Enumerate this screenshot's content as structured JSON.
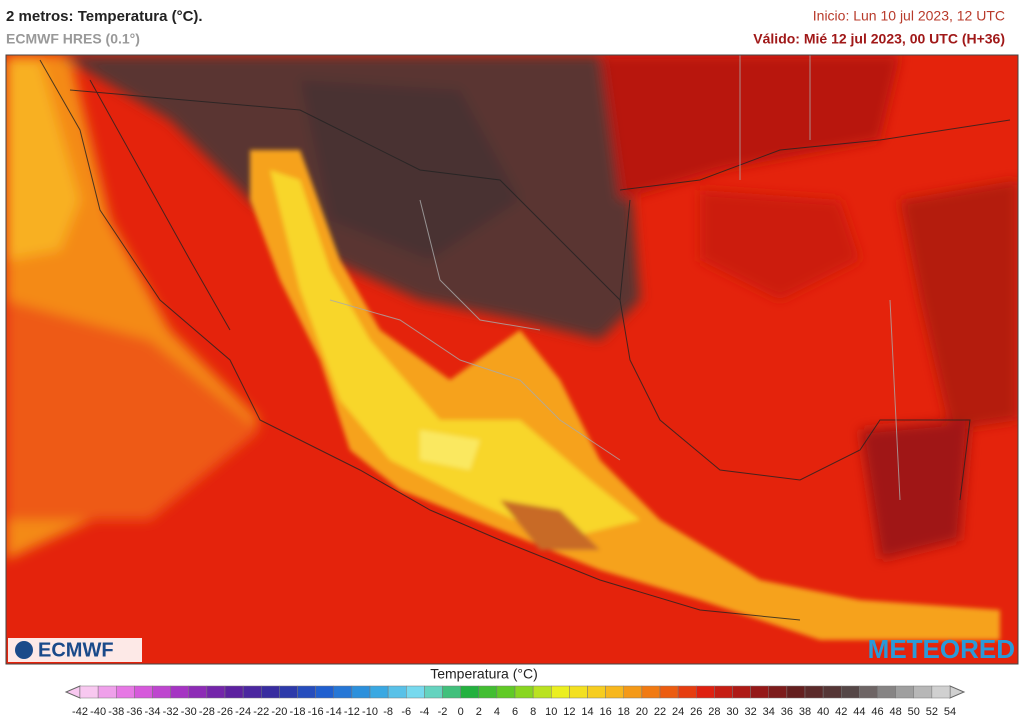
{
  "header": {
    "title": "2 metros: Temperatura (°C).",
    "subtitle": "ECMWF HRES (0.1°)",
    "init": "Inicio: Lun 10 jul 2023, 12 UTC",
    "valid": "Válido: Mié 12 jul 2023, 00 UTC (H+36)"
  },
  "logos": {
    "left": "ECMWF",
    "right": "METEORED"
  },
  "legend": {
    "title": "Temperatura (°C)",
    "ticks": [
      -42,
      -40,
      -38,
      -36,
      -34,
      -32,
      -30,
      -28,
      -26,
      -24,
      -22,
      -20,
      -18,
      -16,
      -14,
      -12,
      -10,
      -8,
      -6,
      -4,
      -2,
      0,
      2,
      4,
      6,
      8,
      10,
      12,
      14,
      16,
      18,
      20,
      22,
      24,
      26,
      28,
      30,
      32,
      34,
      36,
      38,
      40,
      42,
      44,
      46,
      48,
      50,
      52,
      54
    ],
    "colors": [
      "#f8c8f0",
      "#e060e0",
      "#a030c0",
      "#6020a0",
      "#3030a0",
      "#2060d0",
      "#30a0e0",
      "#80e0f0",
      "#20b040",
      "#70d020",
      "#f0f020",
      "#f8c020",
      "#f07010",
      "#e02010",
      "#a01818",
      "#602020",
      "#504040",
      "#909090",
      "#d0d0d0"
    ]
  }
}
